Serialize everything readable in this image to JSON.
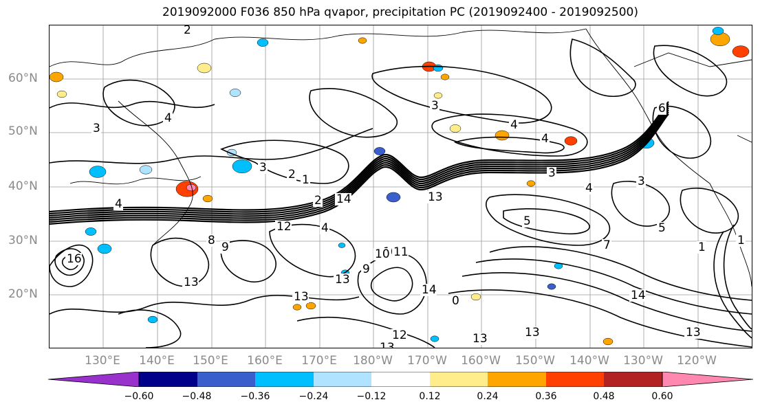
{
  "title": "2019092000 F036 850 hPa qvapor, precipitation PC (2019092400 - 2019092500)",
  "lat_labels": [
    "60°N",
    "50°N",
    "40°N",
    "30°N",
    "20°N"
  ],
  "lon_labels": [
    "130°E",
    "140°E",
    "150°E",
    "160°E",
    "170°E",
    "180°W",
    "170°W",
    "160°W",
    "150°W",
    "140°W",
    "130°W",
    "120°W"
  ],
  "contour_labels": [
    "2",
    "2",
    "3",
    "3",
    "4",
    "4",
    "4",
    "3",
    "2",
    "1",
    "4",
    "10",
    "12",
    "14",
    "13",
    "13",
    "13",
    "9",
    "10",
    "11",
    "14",
    "13",
    "12",
    "13",
    "13",
    "13",
    "14",
    "13",
    "13",
    "16",
    "1",
    "5",
    "6",
    "4",
    "3",
    "1",
    "5",
    "8",
    "9",
    "7",
    "3",
    "0",
    "4"
  ],
  "colorbar": {
    "ticks": [
      "−0.60",
      "−0.48",
      "−0.36",
      "−0.24",
      "−0.12",
      "0.12",
      "0.24",
      "0.36",
      "0.48",
      "0.60"
    ],
    "colors": [
      "#9932cc",
      "#00008b",
      "#3a5fcd",
      "#00bfff",
      "#afe3ff",
      "#ffffff",
      "#ffec8b",
      "#ffa500",
      "#ff4000",
      "#b22222",
      "#ff88b0"
    ]
  }
}
